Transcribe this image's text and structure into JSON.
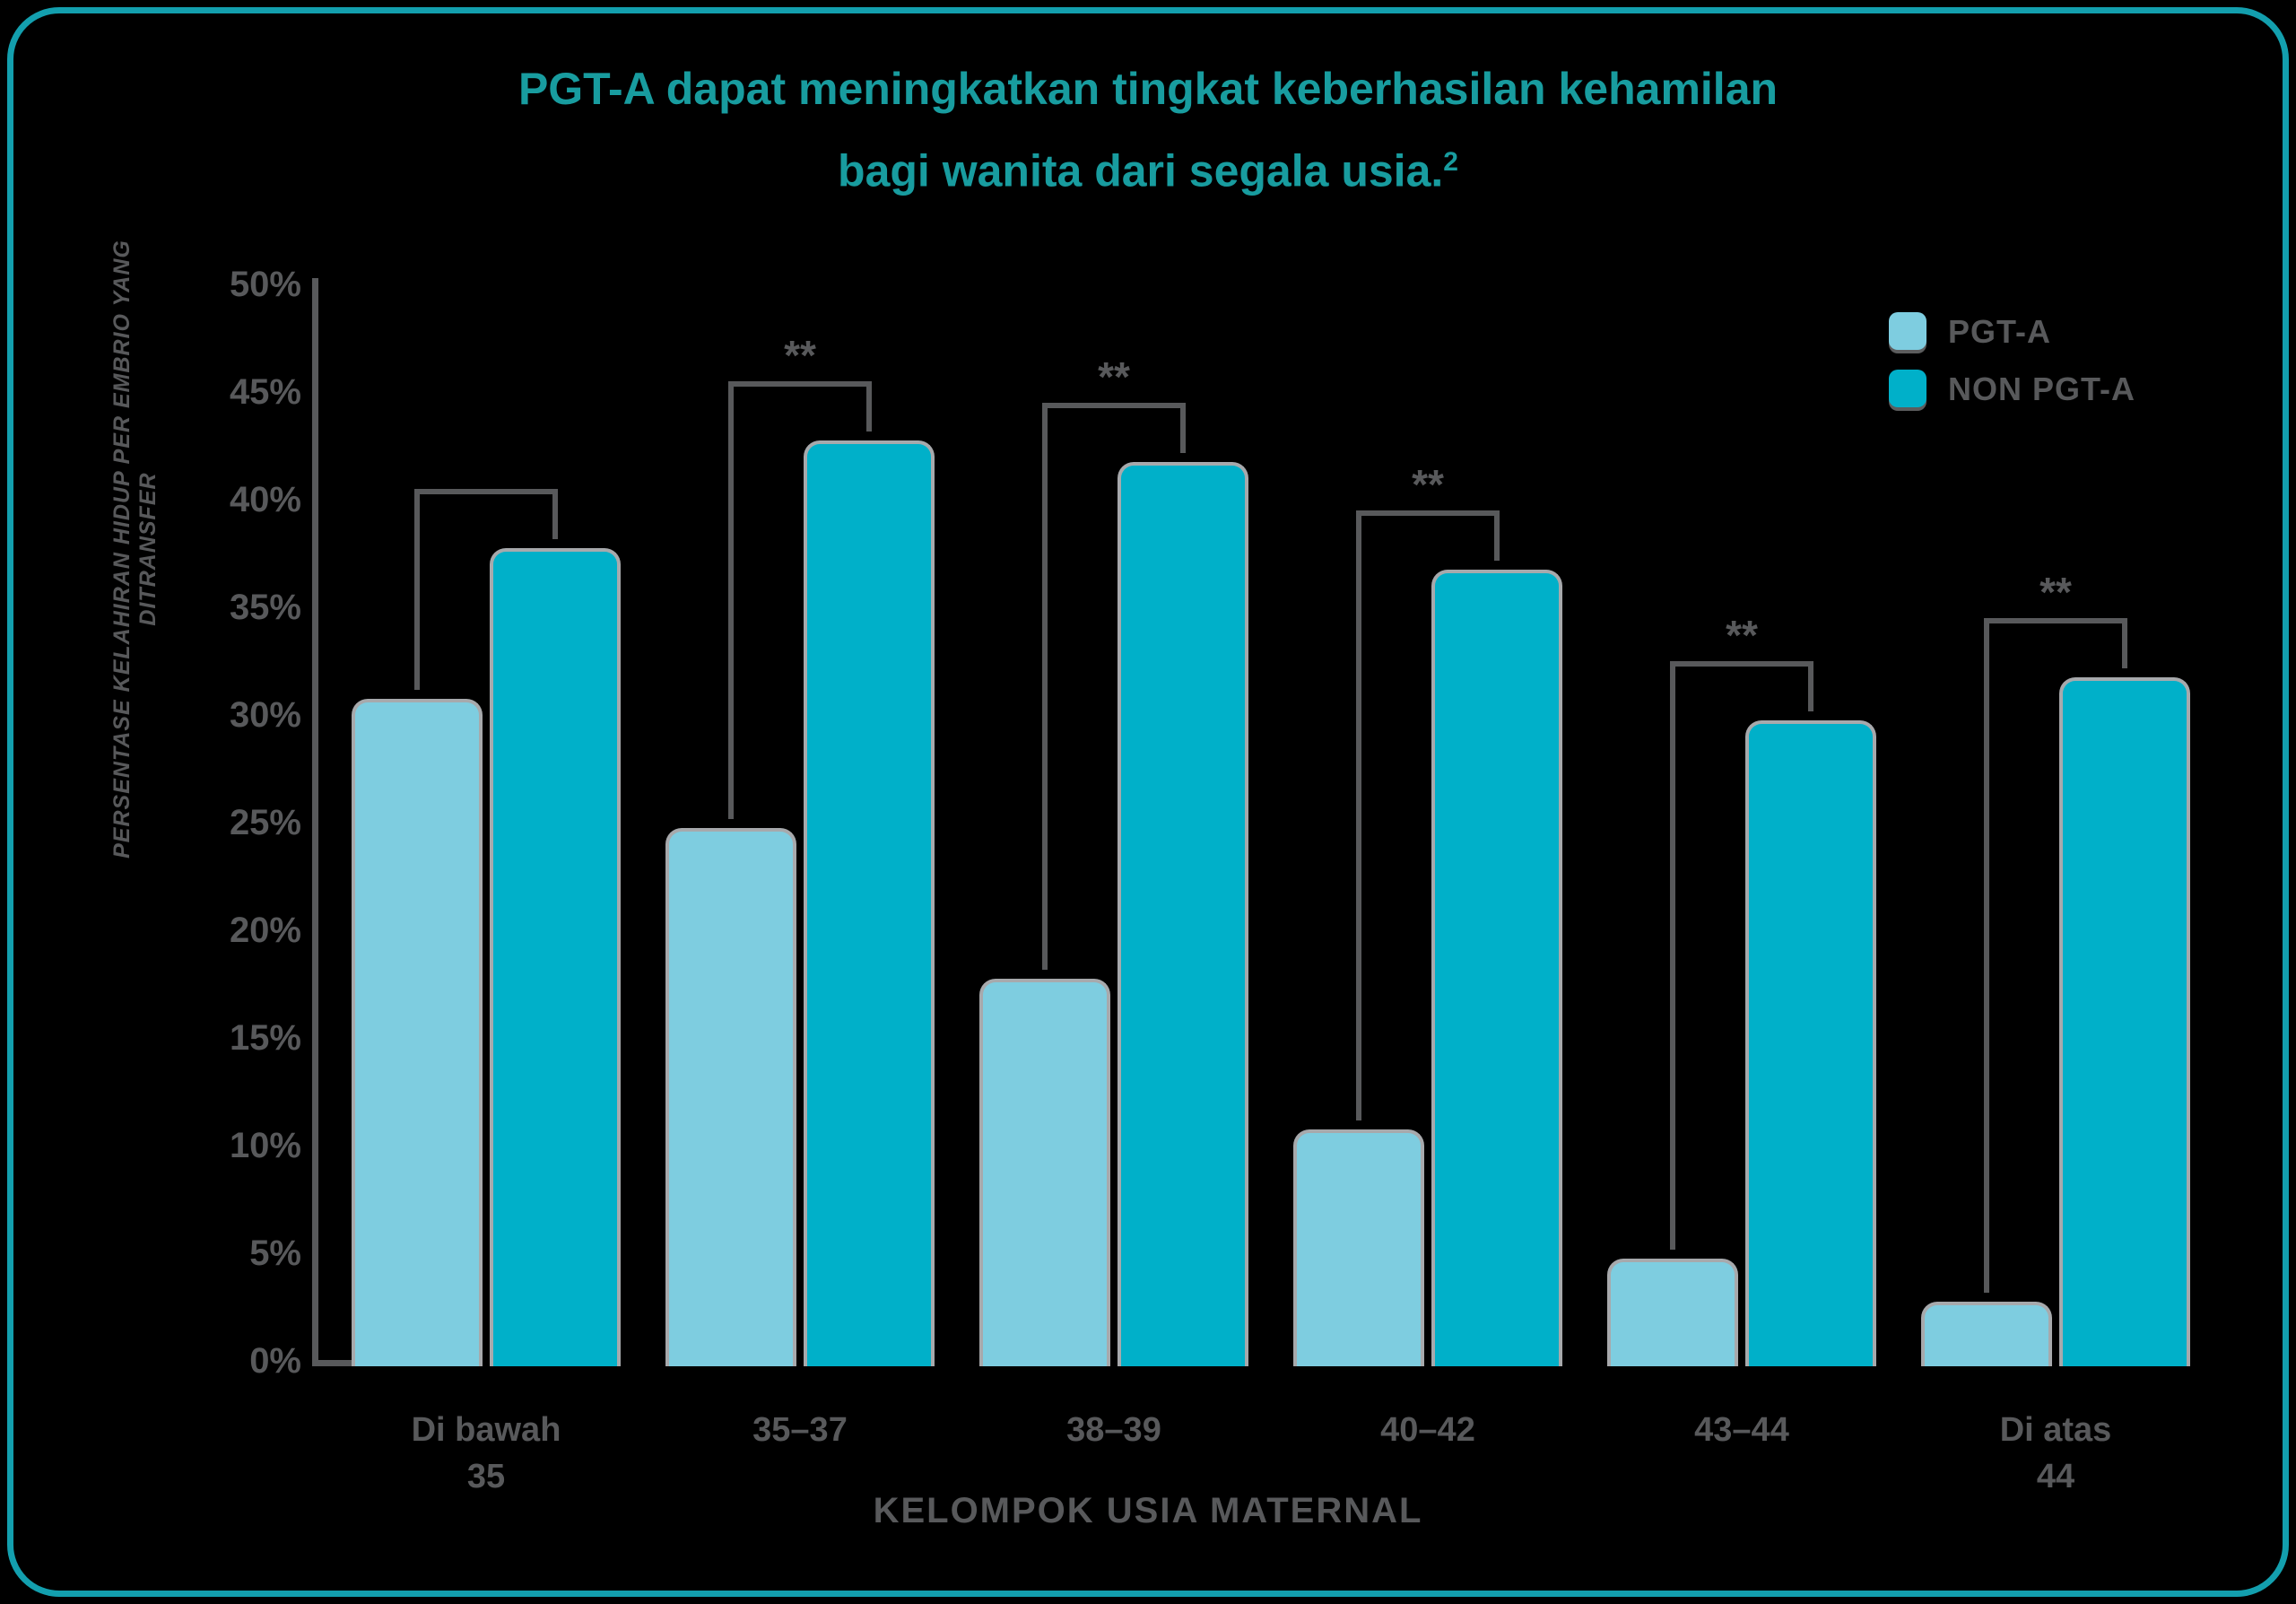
{
  "frame": {
    "border_color": "#139FAE",
    "background": "#000000"
  },
  "title": {
    "line1": "PGT-A dapat meningkatkan tingkat keberhasilan kehamilan",
    "line2": "bagi wanita dari segala usia.",
    "superscript": "2",
    "color": "#189C9F"
  },
  "legend": {
    "position": "top-right",
    "items": [
      {
        "label": "PGT-A",
        "color": "#7ECDE0"
      },
      {
        "label": "NON PGT-A",
        "color": "#00B0C9"
      }
    ]
  },
  "axes": {
    "y_title": "PERSENTASE KELAHIRAN HIDUP PER EMBRIO YANG DITRANSFER",
    "x_title": "KELOMPOK USIA MATERNAL",
    "y_tick_labels": [
      "0%",
      "5%",
      "10%",
      "15%",
      "20%",
      "25%",
      "30%",
      "35%",
      "40%",
      "45%",
      "50%"
    ],
    "text_color": "#58595B"
  },
  "chart_data": {
    "type": "bar",
    "categories": [
      "Di bawah\n35",
      "35–37",
      "38–39",
      "40–42",
      "43–44",
      "Di atas\n44"
    ],
    "series": [
      {
        "name": "PGT-A",
        "color": "#7ECDE0",
        "values": [
          31,
          25,
          18,
          11,
          5,
          3
        ]
      },
      {
        "name": "NON PGT-A",
        "color": "#00B0C9",
        "values": [
          38,
          43,
          42,
          37,
          30,
          32
        ]
      }
    ],
    "annotations": [
      {
        "pair": 0,
        "label": ""
      },
      {
        "pair": 1,
        "label": "**"
      },
      {
        "pair": 2,
        "label": "**"
      },
      {
        "pair": 3,
        "label": "**"
      },
      {
        "pair": 4,
        "label": "**"
      },
      {
        "pair": 5,
        "label": "**"
      }
    ],
    "title": "PGT-A dapat meningkatkan tingkat keberhasilan kehamilan bagi wanita dari segala usia.",
    "xlabel": "KELOMPOK USIA MATERNAL",
    "ylabel": "PERSENTASE KELAHIRAN HIDUP PER EMBRIO YANG DITRANSFER",
    "ylim": [
      0,
      50
    ],
    "y_tick_step": 5,
    "grid": false,
    "bracket_color": "#58595B"
  }
}
